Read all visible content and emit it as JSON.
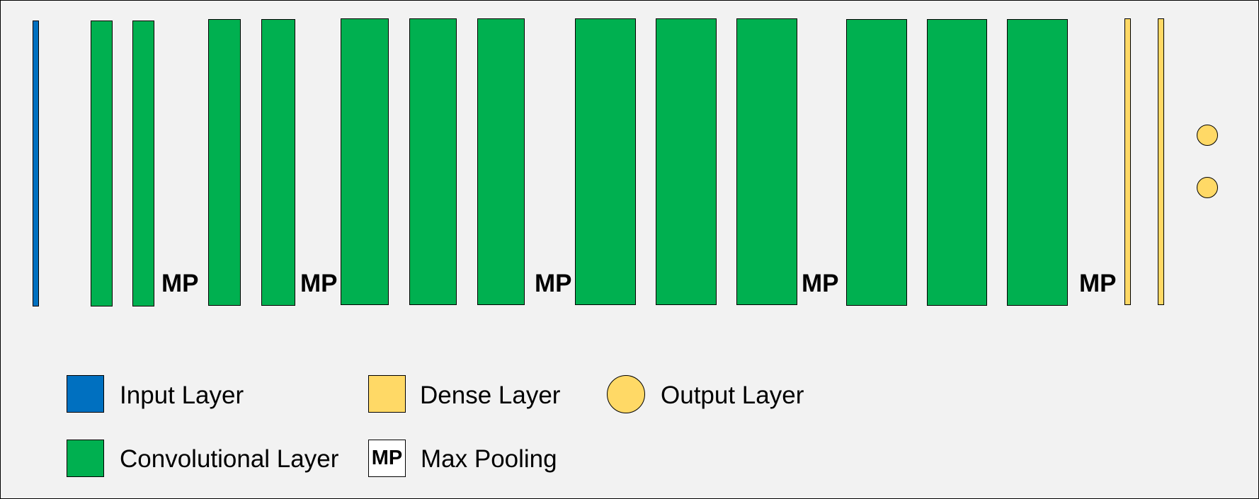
{
  "diagram": {
    "pool_marker": "MP",
    "colors": {
      "input": "#0070c0",
      "convolutional": "#00b050",
      "dense": "#ffd966",
      "output": "#ffd966",
      "max_pooling": "#ffffff",
      "background": "#f2f2f2"
    },
    "layers": [
      "input",
      "conv",
      "conv",
      "maxpool",
      "conv",
      "conv",
      "maxpool",
      "conv",
      "conv",
      "conv",
      "maxpool",
      "conv",
      "conv",
      "conv",
      "maxpool",
      "conv",
      "conv",
      "conv",
      "maxpool",
      "dense",
      "dense",
      "output"
    ],
    "output_units": 2
  },
  "legend": {
    "input": "Input Layer",
    "dense": "Dense Layer",
    "output": "Output Layer",
    "conv": "Convolutional Layer",
    "maxpool": "Max Pooling",
    "maxpool_symbol": "MP"
  }
}
